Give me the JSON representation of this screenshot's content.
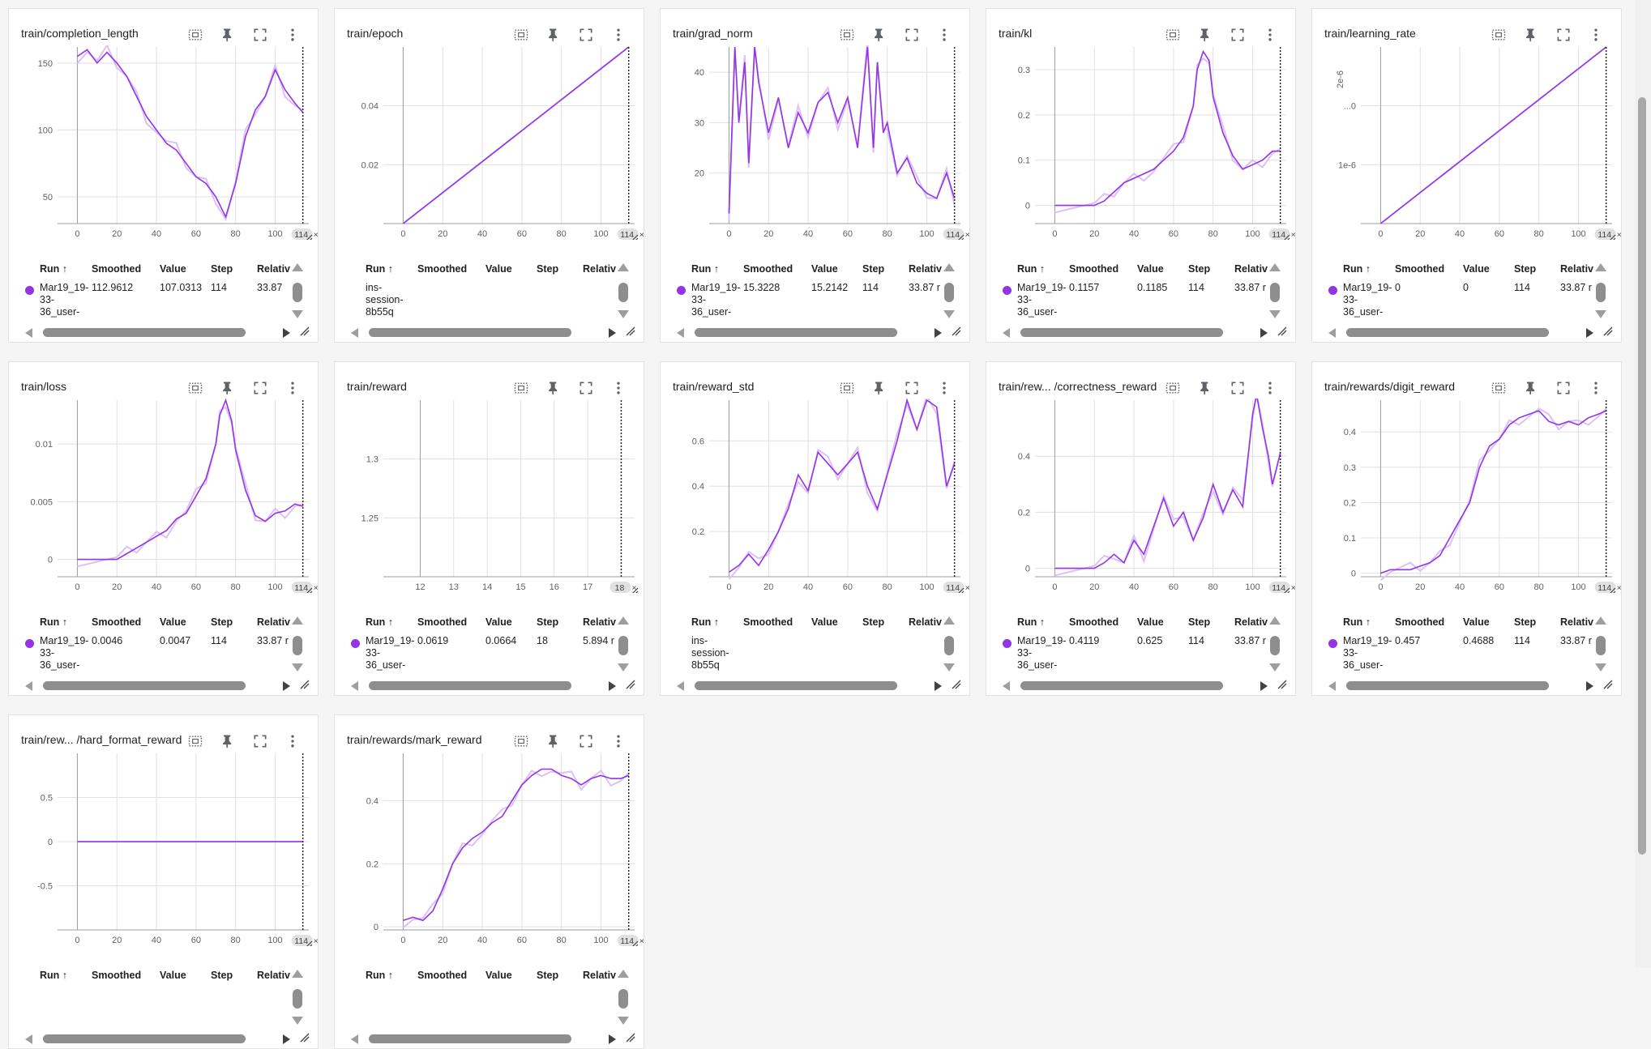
{
  "table_headers": {
    "run": "Run ↑",
    "smoothed": "Smoothed",
    "value": "Value",
    "step": "Step",
    "relative": "Relativ"
  },
  "colors": {
    "line": "#9334e6",
    "line_raw": "#dcc1f6",
    "grid": "#e0e0e0",
    "axis": "#9e9e9e"
  },
  "icons": [
    "data-selection-icon",
    "pin-icon",
    "fullscreen-icon",
    "more-vert-icon"
  ],
  "cards": [
    {
      "title": "train/completion_length",
      "badge": "114",
      "yticks": [
        {
          "v": 50,
          "t": "50"
        },
        {
          "v": 100,
          "t": "100"
        },
        {
          "v": 150,
          "t": "150"
        }
      ],
      "ylim": [
        30,
        162
      ],
      "xticks": [
        0,
        20,
        40,
        60,
        80,
        100
      ],
      "xlim": [
        -10,
        117
      ],
      "table": {
        "run": "Mar19_19-\n33-\n36_user-",
        "smoothed": "112.9612",
        "value": "107.0313",
        "step": "114",
        "relative": "33.87"
      }
    },
    {
      "title": "train/epoch",
      "badge": "114",
      "yticks": [
        {
          "v": 0.02,
          "t": "0.02"
        },
        {
          "v": 0.04,
          "t": "0.04"
        }
      ],
      "ylim": [
        0,
        0.06
      ],
      "xticks": [
        0,
        20,
        40,
        60,
        80,
        100
      ],
      "xlim": [
        -10,
        117
      ],
      "table": {
        "run": "ins-\nsession-\n8b55q",
        "smoothed": "",
        "value": "",
        "step": "",
        "relative": ""
      }
    },
    {
      "title": "train/grad_norm",
      "badge": "114",
      "yticks": [
        {
          "v": 20,
          "t": "20"
        },
        {
          "v": 30,
          "t": "30"
        },
        {
          "v": 40,
          "t": "40"
        }
      ],
      "ylim": [
        10,
        45
      ],
      "xticks": [
        0,
        20,
        40,
        60,
        80,
        100
      ],
      "xlim": [
        -10,
        117
      ],
      "table": {
        "run": "Mar19_19-\n33-\n36_user-",
        "smoothed": "15.3228",
        "value": "15.2142",
        "step": "114",
        "relative": "33.87 r"
      }
    },
    {
      "title": "train/kl",
      "badge": "114",
      "yticks": [
        {
          "v": 0,
          "t": "0"
        },
        {
          "v": 0.1,
          "t": "0.1"
        },
        {
          "v": 0.2,
          "t": "0.2"
        },
        {
          "v": 0.3,
          "t": "0.3"
        }
      ],
      "ylim": [
        -0.04,
        0.35
      ],
      "xticks": [
        0,
        20,
        40,
        60,
        80,
        100
      ],
      "xlim": [
        -10,
        117
      ],
      "table": {
        "run": "Mar19_19-\n33-\n36_user-",
        "smoothed": "0.1157",
        "value": "0.1185",
        "step": "114",
        "relative": "33.87 r"
      }
    },
    {
      "title": "train/learning_rate",
      "badge": "114",
      "yticks": [
        {
          "v": 1e-06,
          "t": "1e-6"
        },
        {
          "v": 2e-06,
          "t": "...0"
        }
      ],
      "ylim": [
        0,
        3e-06
      ],
      "xticks": [
        0,
        20,
        40,
        60,
        80,
        100
      ],
      "xlim": [
        -10,
        117
      ],
      "ytopLabel": "2e-6",
      "table": {
        "run": "Mar19_19-\n33-\n36_user-",
        "smoothed": "0",
        "value": "0",
        "step": "114",
        "relative": "33.87 r"
      }
    },
    {
      "title": "train/loss",
      "badge": "114",
      "yticks": [
        {
          "v": 0,
          "t": "0"
        },
        {
          "v": 0.005,
          "t": "0.005"
        },
        {
          "v": 0.01,
          "t": "0.01"
        }
      ],
      "ylim": [
        -0.0015,
        0.0138
      ],
      "xticks": [
        0,
        20,
        40,
        60,
        80,
        100
      ],
      "xlim": [
        -10,
        117
      ],
      "table": {
        "run": "Mar19_19-\n33-\n36_user-",
        "smoothed": "0.0046",
        "value": "0.0047",
        "step": "114",
        "relative": "33.87 r"
      }
    },
    {
      "title": "train/reward",
      "badge": "18",
      "yticks": [
        {
          "v": 1.25,
          "t": "1.25"
        },
        {
          "v": 1.3,
          "t": "1.3"
        }
      ],
      "ylim": [
        1.2,
        1.35
      ],
      "xticks": [
        12,
        13,
        14,
        15,
        16,
        17
      ],
      "xlim": [
        10.9,
        18.4
      ],
      "table": {
        "run": "Mar19_19-\n33-\n36_user-",
        "smoothed": "0.0619",
        "value": "0.0664",
        "step": "18",
        "relative": "5.894 r"
      }
    },
    {
      "title": "train/reward_std",
      "badge": "114",
      "yticks": [
        {
          "v": 0.2,
          "t": "0.2"
        },
        {
          "v": 0.4,
          "t": "0.4"
        },
        {
          "v": 0.6,
          "t": "0.6"
        }
      ],
      "ylim": [
        0,
        0.78
      ],
      "xticks": [
        0,
        20,
        40,
        60,
        80,
        100
      ],
      "xlim": [
        -10,
        117
      ],
      "table": {
        "run": "ins-\nsession-\n8b55q",
        "smoothed": "",
        "value": "",
        "step": "",
        "relative": ""
      }
    },
    {
      "title": "train/rew... /correctness_reward",
      "badge": "114",
      "yticks": [
        {
          "v": 0,
          "t": "0"
        },
        {
          "v": 0.2,
          "t": "0.2"
        },
        {
          "v": 0.4,
          "t": "0.4"
        }
      ],
      "ylim": [
        -0.03,
        0.6
      ],
      "xticks": [
        0,
        20,
        40,
        60,
        80,
        100
      ],
      "xlim": [
        -10,
        117
      ],
      "table": {
        "run": "Mar19_19-\n33-\n36_user-",
        "smoothed": "0.4119",
        "value": "0.625",
        "step": "114",
        "relative": "33.87 r"
      }
    },
    {
      "title": "train/rewards/digit_reward",
      "badge": "114",
      "yticks": [
        {
          "v": 0,
          "t": "0"
        },
        {
          "v": 0.1,
          "t": "0.1"
        },
        {
          "v": 0.2,
          "t": "0.2"
        },
        {
          "v": 0.3,
          "t": "0.3"
        },
        {
          "v": 0.4,
          "t": "0.4"
        }
      ],
      "ylim": [
        -0.01,
        0.49
      ],
      "xticks": [
        0,
        20,
        40,
        60,
        80,
        100
      ],
      "xlim": [
        -10,
        117
      ],
      "table": {
        "run": "Mar19_19-\n33-\n36_user-",
        "smoothed": "0.457",
        "value": "0.4688",
        "step": "114",
        "relative": "33.87 r"
      }
    },
    {
      "title": "train/rew... /hard_format_reward",
      "badge": "114",
      "yticks": [
        {
          "v": -0.5,
          "t": "-0.5"
        },
        {
          "v": 0,
          "t": "0"
        },
        {
          "v": 0.5,
          "t": "0.5"
        }
      ],
      "ylim": [
        -1,
        1
      ],
      "xticks": [
        0,
        20,
        40,
        60,
        80,
        100
      ],
      "xlim": [
        -10,
        117
      ],
      "table": {
        "run": "",
        "smoothed": "",
        "value": "",
        "step": "",
        "relative": ""
      }
    },
    {
      "title": "train/rewards/mark_reward",
      "badge": "114",
      "yticks": [
        {
          "v": 0,
          "t": "0"
        },
        {
          "v": 0.2,
          "t": "0.2"
        },
        {
          "v": 0.4,
          "t": "0.4"
        }
      ],
      "ylim": [
        -0.01,
        0.55
      ],
      "xticks": [
        0,
        20,
        40,
        60,
        80,
        100
      ],
      "xlim": [
        -10,
        117
      ],
      "table": {
        "run": "",
        "smoothed": "",
        "value": "",
        "step": "",
        "relative": ""
      }
    }
  ],
  "chart_data": [
    {
      "type": "line",
      "title": "train/completion_length",
      "x": [
        0,
        5,
        10,
        15,
        20,
        25,
        30,
        35,
        40,
        45,
        50,
        55,
        60,
        65,
        70,
        75,
        80,
        85,
        90,
        95,
        100,
        105,
        110,
        114
      ],
      "series": [
        {
          "values": [
            155,
            160,
            150,
            158,
            150,
            140,
            125,
            110,
            100,
            90,
            85,
            75,
            65,
            60,
            50,
            35,
            60,
            95,
            115,
            125,
            145,
            130,
            120,
            113
          ]
        }
      ]
    },
    {
      "type": "line",
      "title": "train/epoch",
      "x": [
        0,
        114
      ],
      "series": [
        {
          "values": [
            0,
            0.06
          ]
        }
      ]
    },
    {
      "type": "line",
      "title": "train/grad_norm",
      "x": [
        0,
        3,
        5,
        8,
        10,
        13,
        15,
        20,
        25,
        30,
        35,
        40,
        45,
        50,
        55,
        60,
        65,
        70,
        73,
        75,
        78,
        80,
        85,
        90,
        95,
        100,
        105,
        110,
        114
      ],
      "series": [
        {
          "values": [
            12,
            45,
            30,
            42,
            22,
            45,
            38,
            28,
            35,
            25,
            32,
            28,
            34,
            36,
            30,
            35,
            25,
            45,
            25,
            42,
            28,
            30,
            20,
            23,
            18,
            16,
            15,
            20,
            15
          ]
        }
      ]
    },
    {
      "type": "line",
      "title": "train/kl",
      "x": [
        0,
        10,
        20,
        25,
        30,
        35,
        40,
        45,
        50,
        55,
        60,
        65,
        70,
        72,
        75,
        78,
        80,
        85,
        90,
        95,
        100,
        105,
        110,
        114
      ],
      "series": [
        {
          "values": [
            0,
            0,
            0,
            0.01,
            0.03,
            0.05,
            0.06,
            0.07,
            0.08,
            0.1,
            0.12,
            0.15,
            0.22,
            0.3,
            0.34,
            0.32,
            0.24,
            0.16,
            0.11,
            0.08,
            0.09,
            0.1,
            0.12,
            0.12
          ]
        }
      ]
    },
    {
      "type": "line",
      "title": "train/learning_rate",
      "x": [
        0,
        114
      ],
      "series": [
        {
          "values": [
            0,
            3e-06
          ]
        }
      ]
    },
    {
      "type": "line",
      "title": "train/loss",
      "x": [
        0,
        10,
        20,
        25,
        30,
        35,
        40,
        45,
        50,
        55,
        60,
        65,
        70,
        72,
        75,
        78,
        80,
        85,
        90,
        95,
        100,
        105,
        110,
        114
      ],
      "series": [
        {
          "values": [
            0,
            0,
            0,
            0.0005,
            0.001,
            0.0015,
            0.002,
            0.0025,
            0.0035,
            0.004,
            0.0055,
            0.007,
            0.01,
            0.0125,
            0.0138,
            0.012,
            0.0095,
            0.006,
            0.0038,
            0.0033,
            0.004,
            0.0042,
            0.0048,
            0.0046
          ]
        }
      ]
    },
    {
      "type": "line",
      "title": "train/reward",
      "x": [],
      "series": [
        {
          "values": []
        }
      ]
    },
    {
      "type": "line",
      "title": "train/reward_std",
      "x": [
        0,
        5,
        10,
        15,
        20,
        25,
        30,
        35,
        40,
        45,
        50,
        55,
        60,
        65,
        70,
        75,
        80,
        85,
        90,
        95,
        100,
        105,
        110,
        114
      ],
      "series": [
        {
          "values": [
            0.02,
            0.05,
            0.1,
            0.05,
            0.12,
            0.2,
            0.3,
            0.45,
            0.38,
            0.55,
            0.5,
            0.45,
            0.5,
            0.55,
            0.4,
            0.3,
            0.45,
            0.6,
            0.78,
            0.65,
            0.78,
            0.75,
            0.4,
            0.5
          ]
        }
      ]
    },
    {
      "type": "line",
      "title": "train/rew... /correctness_reward",
      "x": [
        0,
        10,
        20,
        25,
        30,
        35,
        40,
        45,
        50,
        55,
        60,
        65,
        70,
        75,
        80,
        85,
        90,
        95,
        100,
        102,
        105,
        108,
        110,
        114
      ],
      "series": [
        {
          "values": [
            0,
            0,
            0,
            0.02,
            0.05,
            0.02,
            0.1,
            0.05,
            0.15,
            0.25,
            0.15,
            0.2,
            0.1,
            0.18,
            0.3,
            0.2,
            0.28,
            0.22,
            0.55,
            0.62,
            0.5,
            0.4,
            0.3,
            0.41
          ]
        }
      ]
    },
    {
      "type": "line",
      "title": "train/rewards/digit_reward",
      "x": [
        0,
        5,
        10,
        15,
        20,
        25,
        30,
        35,
        40,
        45,
        50,
        55,
        60,
        65,
        70,
        75,
        80,
        85,
        90,
        95,
        100,
        105,
        110,
        114
      ],
      "series": [
        {
          "values": [
            0,
            0.01,
            0.01,
            0.01,
            0.02,
            0.03,
            0.05,
            0.1,
            0.15,
            0.2,
            0.3,
            0.36,
            0.38,
            0.42,
            0.44,
            0.45,
            0.46,
            0.43,
            0.42,
            0.43,
            0.42,
            0.44,
            0.45,
            0.46
          ]
        }
      ]
    },
    {
      "type": "line",
      "title": "train/rew... /hard_format_reward",
      "x": [
        0,
        114
      ],
      "series": [
        {
          "values": [
            0,
            0
          ]
        }
      ]
    },
    {
      "type": "line",
      "title": "train/rewards/mark_reward",
      "x": [
        0,
        5,
        10,
        15,
        20,
        25,
        30,
        35,
        40,
        45,
        50,
        55,
        60,
        65,
        70,
        75,
        80,
        85,
        90,
        95,
        100,
        105,
        110,
        114
      ],
      "series": [
        {
          "values": [
            0.02,
            0.03,
            0.02,
            0.05,
            0.12,
            0.2,
            0.25,
            0.28,
            0.3,
            0.33,
            0.35,
            0.4,
            0.45,
            0.48,
            0.5,
            0.5,
            0.48,
            0.47,
            0.45,
            0.47,
            0.48,
            0.47,
            0.47,
            0.48
          ]
        }
      ]
    }
  ]
}
